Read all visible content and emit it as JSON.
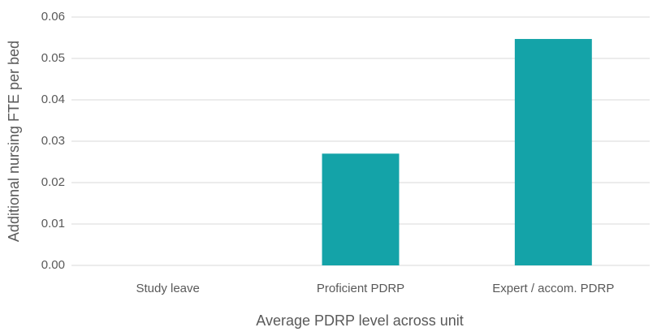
{
  "chart_data": {
    "type": "bar",
    "x_label": "Average PDRP level across unit",
    "y_label": "Additional nursing FTE per bed",
    "categories": [
      "Study leave",
      "Proficient PDRP",
      "Expert / accom. PDRP"
    ],
    "values": [
      0,
      0.027,
      0.0547
    ],
    "color": "#14a3a8",
    "ylim": [
      0,
      0.06
    ],
    "yticks": [
      {
        "value": 0,
        "label": "0.00"
      },
      0.01,
      0.02,
      0.03,
      0.04,
      0.05,
      0.06
    ],
    "grid": true
  }
}
